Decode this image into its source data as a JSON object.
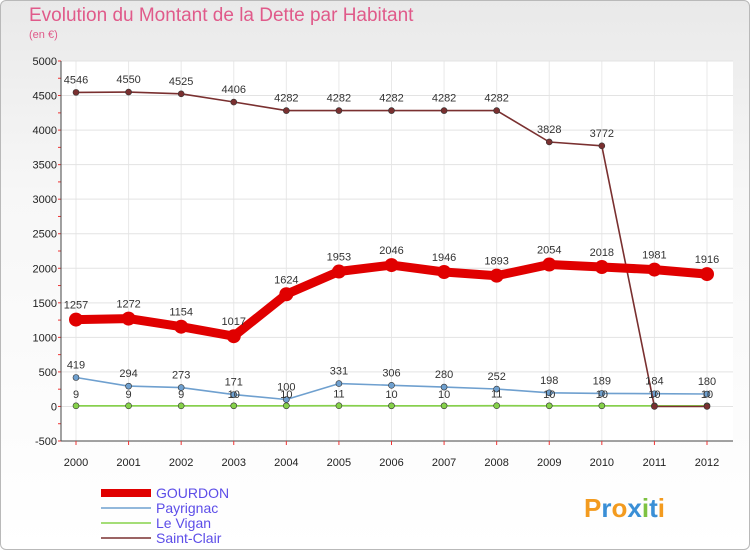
{
  "chart_data": {
    "type": "line",
    "title": "Evolution du Montant de la Dette par Habitant",
    "subtitle": "(en €)",
    "xlabel": "",
    "ylabel": "",
    "ylim": [
      -500,
      5000
    ],
    "yticks": [
      -500,
      0,
      500,
      1000,
      1500,
      2000,
      2500,
      3000,
      3500,
      4000,
      4500,
      5000
    ],
    "x": [
      "2000",
      "2001",
      "2002",
      "2003",
      "2004",
      "2005",
      "2006",
      "2007",
      "2008",
      "2009",
      "2010",
      "2011",
      "2012"
    ],
    "series": [
      {
        "name": "GOURDON",
        "color": "#e00000",
        "values": [
          1257,
          1272,
          1154,
          1017,
          1624,
          1953,
          2046,
          1946,
          1893,
          2054,
          2018,
          1981,
          1916
        ]
      },
      {
        "name": "Payrignac",
        "color": "#6fa0cf",
        "values": [
          419,
          294,
          273,
          171,
          100,
          331,
          306,
          280,
          252,
          198,
          189,
          184,
          180
        ]
      },
      {
        "name": "Le Vigan",
        "color": "#86d24a",
        "values": [
          9,
          9,
          9,
          10,
          10,
          11,
          10,
          10,
          11,
          10,
          10,
          10,
          10
        ]
      },
      {
        "name": "Saint-Clair",
        "color": "#7a3030",
        "values": [
          4546,
          4550,
          4525,
          4406,
          4282,
          4282,
          4282,
          4282,
          4282,
          3828,
          3772,
          0,
          0
        ]
      }
    ],
    "labels": {
      "Saint-Clair": [
        "4546",
        "4550",
        "4525",
        "4406",
        "4282",
        "4282",
        "4282",
        "4282",
        "4282",
        "3828",
        "3772",
        "",
        ""
      ],
      "GOURDON": [
        "1257",
        "1272",
        "1154",
        "1017",
        "1624",
        "1953",
        "2046",
        "1946",
        "1893",
        "2054",
        "2018",
        "1981",
        "1916"
      ],
      "Payrignac": [
        "419",
        "294",
        "273",
        "171",
        "100",
        "331",
        "306",
        "280",
        "252",
        "198",
        "189",
        "184",
        "180"
      ],
      "Le Vigan": [
        "9",
        "9",
        "9",
        "10",
        "10",
        "11",
        "10",
        "10",
        "11",
        "10",
        "10",
        "10",
        "10"
      ]
    },
    "legend_position": "bottom-left"
  },
  "logo": {
    "text": "Proxiti"
  }
}
